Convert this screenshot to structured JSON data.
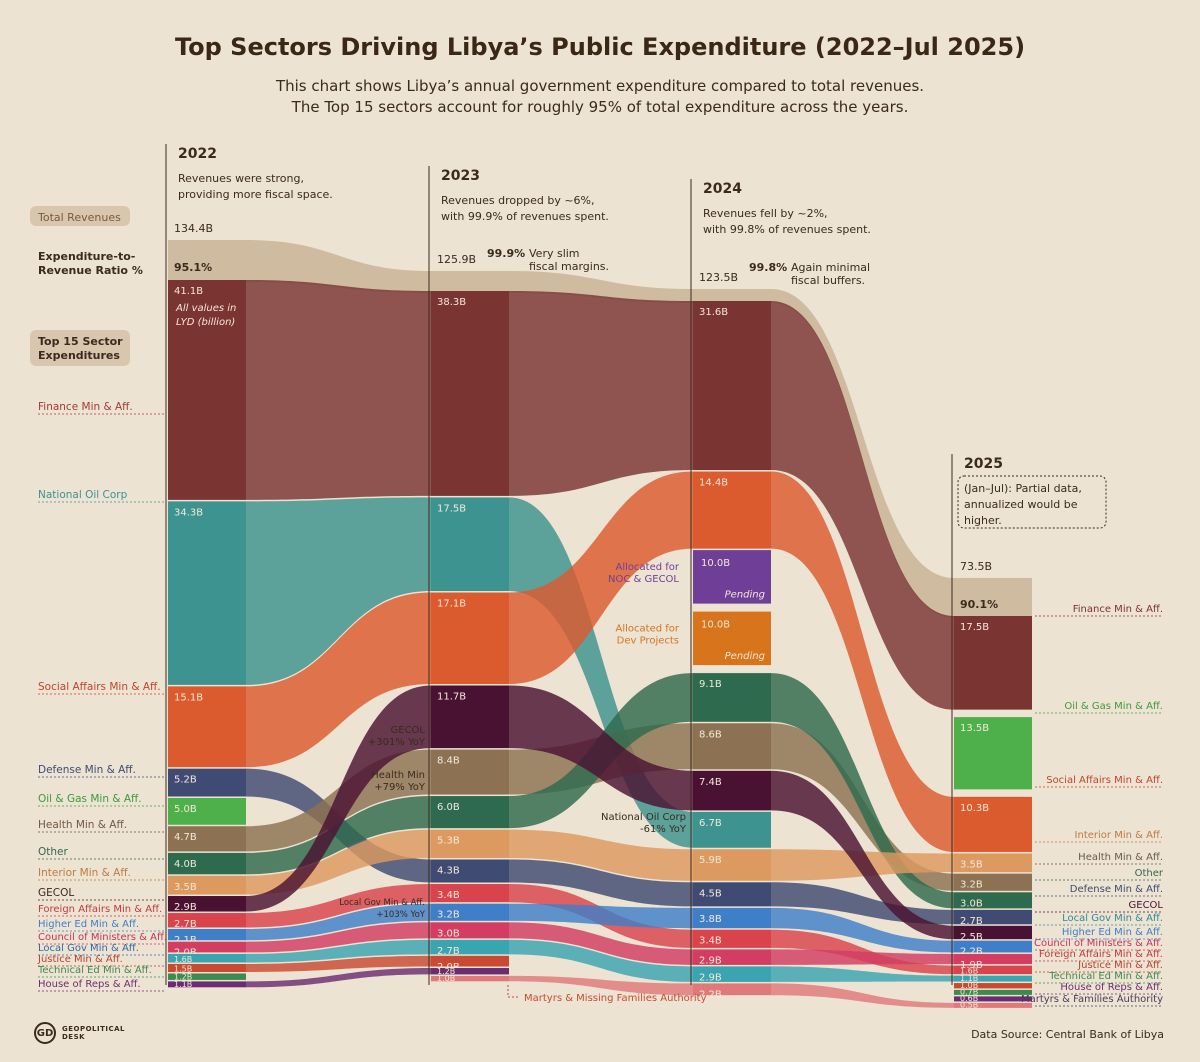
{
  "title": "Top Sectors Driving Libya’s Public Expenditure (2022–Jul 2025)",
  "subtitle_lines": [
    "This chart shows Libya’s annual government expenditure compared to total revenues.",
    "The Top 15 sectors account for roughly 95% of total expenditure across the years."
  ],
  "source": "Data Source: Central Bank of Libya",
  "logo_mark": "GD",
  "logo_text_1": "GEOPOLITICAL",
  "logo_text_2": "DESK",
  "chart_data": {
    "type": "sankey-bump",
    "units_note": "All values in LYD (billion)",
    "left_labels": {
      "total_revenues": "Total Revenues",
      "ratio_line1": "Expenditure-to-",
      "ratio_line2": "Revenue Ratio %",
      "top15_line1": "Top 15 Sector",
      "top15_line2": "Expenditures"
    },
    "years": [
      {
        "year": "2022",
        "revenue": 134.4,
        "revenue_label": "134.4B",
        "ratio_label": "95.1%",
        "notes": [
          "Revenues were strong,",
          "providing more fiscal space."
        ]
      },
      {
        "year": "2023",
        "revenue": 125.9,
        "revenue_label": "125.9B",
        "ratio_label": "99.9%",
        "notes": [
          "Revenues dropped by ~6%,",
          "with 99.9% of revenues spent."
        ],
        "callout": [
          "Very slim",
          "fiscal margins."
        ]
      },
      {
        "year": "2024",
        "revenue": 123.5,
        "revenue_label": "123.5B",
        "ratio_label": "99.8%",
        "notes": [
          "Revenues fell by ~2%,",
          "with 99.8% of revenues spent."
        ],
        "callout": [
          "Again minimal",
          "fiscal buffers."
        ]
      },
      {
        "year": "2025",
        "revenue": 73.5,
        "revenue_label": "73.5B",
        "ratio_label": "90.1%",
        "notes": [
          "(Jan–Jul): Partial data,",
          "annualized would be",
          "higher."
        ]
      }
    ],
    "series": [
      {
        "name": "Finance Min & Aff.",
        "color": "#7a3432",
        "values": [
          41.1,
          38.3,
          31.6,
          17.5
        ],
        "labels": [
          "41.1B",
          "38.3B",
          "31.6B",
          "17.5B"
        ]
      },
      {
        "name": "National Oil Corp",
        "color": "#3d938f",
        "values": [
          34.3,
          17.5,
          6.7,
          null
        ],
        "labels": [
          "34.3B",
          "17.5B",
          "6.7B",
          ""
        ]
      },
      {
        "name": "Social Affairs Min & Aff.",
        "color": "#db5a2e",
        "values": [
          15.1,
          17.1,
          14.4,
          10.3
        ],
        "labels": [
          "15.1B",
          "17.1B",
          "14.4B",
          "10.3B"
        ]
      },
      {
        "name": "Defense Min & Aff.",
        "color": "#3f4b72",
        "values": [
          5.2,
          4.3,
          4.5,
          2.7
        ],
        "labels": [
          "5.2B",
          "4.3B",
          "4.5B",
          "2.7B"
        ]
      },
      {
        "name": "Oil & Gas Min & Aff.",
        "color": "#4db04a",
        "values": [
          5.0,
          null,
          null,
          13.5
        ],
        "labels": [
          "5.0B",
          "",
          "",
          "13.5B"
        ]
      },
      {
        "name": "Health Min & Aff.",
        "color": "#8c7252",
        "values": [
          4.7,
          8.4,
          8.6,
          3.2
        ],
        "labels": [
          "4.7B",
          "8.4B",
          "8.6B",
          "3.2B"
        ]
      },
      {
        "name": "Other",
        "color": "#2e6a4d",
        "values": [
          4.0,
          6.0,
          9.1,
          3.0
        ],
        "labels": [
          "4.0B",
          "6.0B",
          "9.1B",
          "3.0B"
        ]
      },
      {
        "name": "Interior Min & Aff.",
        "color": "#dd9a60",
        "values": [
          3.5,
          5.3,
          5.9,
          3.5
        ],
        "labels": [
          "3.5B",
          "5.3B",
          "5.9B",
          "3.5B"
        ]
      },
      {
        "name": "GECOL",
        "color": "#4a1232",
        "values": [
          2.9,
          11.7,
          7.4,
          2.5
        ],
        "labels": [
          "2.9B",
          "11.7B",
          "7.4B",
          "2.5B"
        ]
      },
      {
        "name": "Foreign Affairs Min & Aff.",
        "color": "#d9444c",
        "values": [
          2.7,
          3.4,
          3.4,
          1.6
        ],
        "labels": [
          "2.7B",
          "3.4B",
          "3.4B",
          "1.6B"
        ]
      },
      {
        "name": "Higher Ed Min & Aff.",
        "color": "#3f7fc8",
        "values": [
          2.1,
          3.2,
          3.8,
          2.2
        ],
        "labels": [
          "2.1B",
          "3.2B",
          "3.8B",
          "2.2B"
        ]
      },
      {
        "name": "Council of Ministers & Aff.",
        "color": "#d23d61",
        "values": [
          2.0,
          3.0,
          2.9,
          1.9
        ],
        "labels": [
          "2.0B",
          "3.0B",
          "2.9B",
          "1.9B"
        ]
      },
      {
        "name": "Local Gov Min & Aff.",
        "color": "#3aa4b0",
        "values": [
          1.6,
          2.7,
          2.9,
          1.1
        ],
        "labels": [
          "1.6B",
          "2.7B",
          "2.9B",
          "1.1B"
        ]
      },
      {
        "name": "Justice Min & Aff.",
        "color": "#c84a33",
        "values": [
          1.5,
          2.0,
          null,
          1.0
        ],
        "labels": [
          "1.5B",
          "2.0B",
          "",
          "1.0B"
        ]
      },
      {
        "name": "Technical Ed Min & Aff.",
        "color": "#3d8a4f",
        "values": [
          1.2,
          null,
          null,
          0.7
        ],
        "labels": [
          "1.2B",
          "",
          "",
          "0.7B"
        ]
      },
      {
        "name": "House of Reps & Aff.",
        "color": "#6b2d72",
        "values": [
          1.1,
          1.2,
          null,
          0.6
        ],
        "labels": [
          "1.1B",
          "1.2B",
          "",
          "0.6B"
        ]
      },
      {
        "name": "Martyrs & Missing Families Authority",
        "color": "#e07a7a",
        "values": [
          null,
          1.0,
          2.2,
          0.5
        ],
        "labels": [
          "",
          "1.0B",
          "2.2B",
          "0.5B"
        ]
      }
    ],
    "allocations_2024": [
      {
        "label_lines": [
          "Allocated for",
          "NOC & GECOL"
        ],
        "value": 10.0,
        "value_label": "10.0B",
        "status": "Pending",
        "color": "#6f3f98"
      },
      {
        "label_lines": [
          "Allocated for",
          "Dev Projects"
        ],
        "value": 10.0,
        "value_label": "10.0B",
        "status": "Pending",
        "color": "#d8741c"
      }
    ],
    "annotations": [
      {
        "lines": [
          "GECOL",
          "+301% YoY"
        ]
      },
      {
        "lines": [
          "Health Min",
          "+79% YoY"
        ]
      },
      {
        "lines": [
          "Local Gov Min & Aff.",
          "+103% YoY"
        ]
      },
      {
        "lines": [
          "National Oil Corp",
          "-61% YoY"
        ]
      }
    ],
    "right_labels": [
      "Finance Min & Aff.",
      "Oil & Gas Min & Aff.",
      "Social Affairs Min & Aff.",
      "Interior Min & Aff.",
      "Health Min & Aff.",
      "Other",
      "Defense Min & Aff.",
      "GECOL",
      "Local Gov Min & Aff.",
      "Higher Ed Min & Aff.",
      "Council of Ministers & Aff.",
      "Foreign Affairs Min & Aff.",
      "Justice Min & Aff.",
      "Technical Ed Min & Aff.",
      "House of Reps & Aff.",
      "Martyrs & Families Authority"
    ],
    "right_label_colors": [
      "#7a3432",
      "#3e9a3c",
      "#c2452b",
      "#c07a3e",
      "#6d5a44",
      "#2e6a4d",
      "#3f4b72",
      "#4a1232",
      "#2f8b98",
      "#3f7fc8",
      "#c23657",
      "#c23a42",
      "#b8432e",
      "#3d8a4f",
      "#6b2d72",
      "#4b3b5c"
    ],
    "left_labels_series": [
      "Finance Min & Aff.",
      "National Oil Corp",
      "Social Affairs Min & Aff.",
      "Defense Min & Aff.",
      "Oil & Gas Min & Aff.",
      "Health Min & Aff.",
      "Other",
      "Interior Min & Aff.",
      "GECOL",
      "Foreign Affairs Min & Aff.",
      "Higher Ed Min & Aff.",
      "Council of Ministers & Aff.",
      "Local Gov Min & Aff.",
      "Justice Min & Aff.",
      "Technical Ed Min & Aff.",
      "House of Reps & Aff."
    ],
    "left_label_colors": [
      "#a63a3a",
      "#3d938f",
      "#c2452b",
      "#3f4b72",
      "#3e9a3c",
      "#6d5a44",
      "#2e6a4d",
      "#c07a3e",
      "#3b2a1e",
      "#c23a42",
      "#3f7fc8",
      "#c23657",
      "#2f6aa8",
      "#b8432e",
      "#3d8a4f",
      "#6b2d72"
    ],
    "bottom_label": "Martyrs & Missing Families Authority"
  }
}
